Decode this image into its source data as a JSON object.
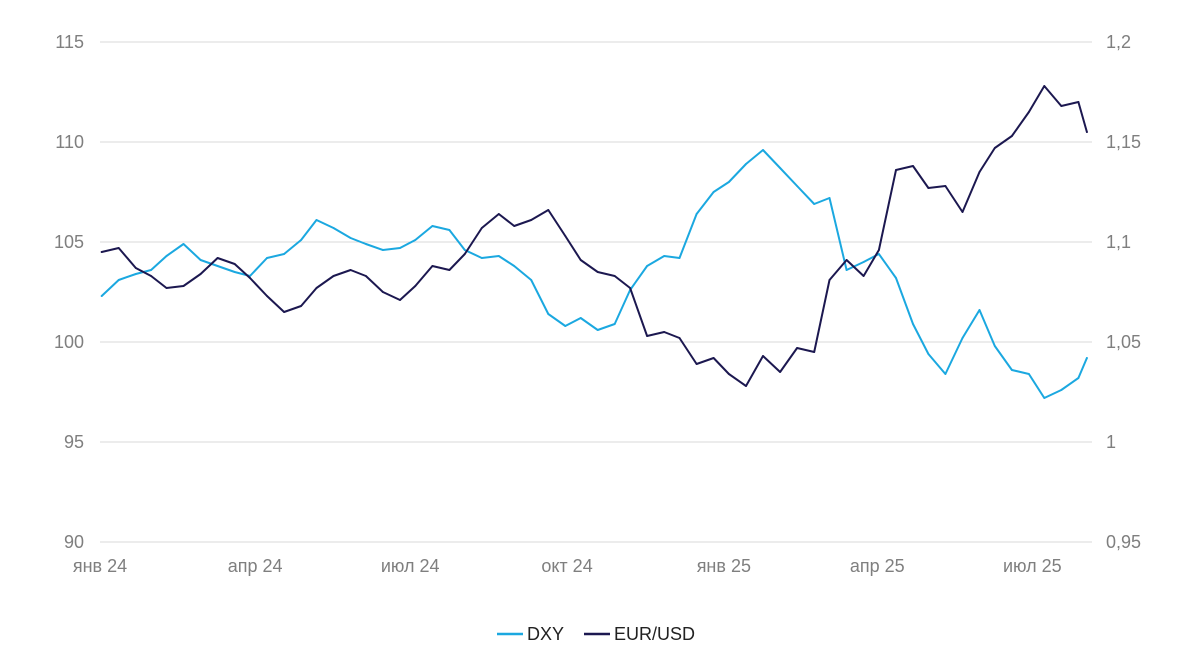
{
  "chart_data": {
    "type": "line",
    "title": "",
    "xlabel": "",
    "ylabel_left": "",
    "ylabel_right": "",
    "grid": true,
    "legend_position": "bottom",
    "colors": {
      "DXY": "#1ba8e0",
      "EUR/USD": "#1c1850",
      "grid": "#d9d9d9",
      "tick_text": "#7f7f7f"
    },
    "x_ticks": [
      {
        "date": "2024-01-01",
        "label": "янв 24"
      },
      {
        "date": "2024-04-01",
        "label": "апр 24"
      },
      {
        "date": "2024-07-01",
        "label": "июл 24"
      },
      {
        "date": "2024-10-01",
        "label": "окт 24"
      },
      {
        "date": "2025-01-01",
        "label": "янв 25"
      },
      {
        "date": "2025-04-01",
        "label": "апр 25"
      },
      {
        "date": "2025-07-01",
        "label": "июл 25"
      }
    ],
    "x_range": [
      "2024-01-01",
      "2025-08-05"
    ],
    "y_left": {
      "range": [
        90,
        115
      ],
      "ticks": [
        90,
        95,
        100,
        105,
        110,
        115
      ],
      "labels": [
        "90",
        "95",
        "100",
        "105",
        "110",
        "115"
      ]
    },
    "y_right": {
      "range": [
        0.95,
        1.2
      ],
      "ticks": [
        0.95,
        1.0,
        1.05,
        1.1,
        1.15,
        1.2
      ],
      "labels": [
        "0,95",
        "1",
        "1,05",
        "1,1",
        "1,15",
        "1,2"
      ]
    },
    "series": [
      {
        "name": "DXY",
        "axis": "left",
        "x": [
          "2024-01-02",
          "2024-01-12",
          "2024-01-22",
          "2024-01-31",
          "2024-02-09",
          "2024-02-19",
          "2024-02-29",
          "2024-03-10",
          "2024-03-20",
          "2024-03-29",
          "2024-04-08",
          "2024-04-18",
          "2024-04-28",
          "2024-05-07",
          "2024-05-17",
          "2024-05-27",
          "2024-06-05",
          "2024-06-15",
          "2024-06-25",
          "2024-07-04",
          "2024-07-14",
          "2024-07-24",
          "2024-08-02",
          "2024-08-12",
          "2024-08-22",
          "2024-08-31",
          "2024-09-10",
          "2024-09-20",
          "2024-09-30",
          "2024-10-09",
          "2024-10-19",
          "2024-10-29",
          "2024-11-07",
          "2024-11-17",
          "2024-11-27",
          "2024-12-06",
          "2024-12-16",
          "2024-12-26",
          "2025-01-04",
          "2025-01-14",
          "2025-01-24",
          "2025-02-03",
          "2025-02-13",
          "2025-02-23",
          "2025-03-04",
          "2025-03-14",
          "2025-03-24",
          "2025-04-02",
          "2025-04-12",
          "2025-04-22",
          "2025-05-01",
          "2025-05-11",
          "2025-05-21",
          "2025-05-31",
          "2025-06-09",
          "2025-06-19",
          "2025-06-29",
          "2025-07-08",
          "2025-07-18",
          "2025-07-28",
          "2025-08-02"
        ],
        "y": [
          102.3,
          103.1,
          103.4,
          103.6,
          104.3,
          104.9,
          104.1,
          103.8,
          103.5,
          103.3,
          104.2,
          104.4,
          105.1,
          106.1,
          105.7,
          105.2,
          104.9,
          104.6,
          104.7,
          105.1,
          105.8,
          105.6,
          104.6,
          104.2,
          104.3,
          103.8,
          103.1,
          101.4,
          100.8,
          101.2,
          100.6,
          100.9,
          102.6,
          103.8,
          104.3,
          104.2,
          106.4,
          107.5,
          108.0,
          108.9,
          109.6,
          108.7,
          107.8,
          106.9,
          107.2,
          103.6,
          104.0,
          104.4,
          103.2,
          100.9,
          99.4,
          98.4,
          100.2,
          101.6,
          99.8,
          98.6,
          98.4,
          97.2,
          97.6,
          98.2,
          99.2
        ],
        "values": [
          102.3,
          103.1,
          103.4,
          103.6,
          104.3,
          104.9,
          104.1,
          103.8,
          103.5,
          103.3,
          104.2,
          104.4,
          105.1,
          106.1,
          105.7,
          105.2,
          104.9,
          104.6,
          104.7,
          105.1,
          105.8,
          105.6,
          104.6,
          104.2,
          104.3,
          103.8,
          103.1,
          101.4,
          100.8,
          101.2,
          100.6,
          100.9,
          102.6,
          103.8,
          104.3,
          104.2,
          106.4,
          107.5,
          108.0,
          108.9,
          109.6,
          108.7,
          107.8,
          106.9,
          107.2,
          103.6,
          104.0,
          104.4,
          103.2,
          100.9,
          99.4,
          98.4,
          100.2,
          101.6,
          99.8,
          98.6,
          98.4,
          97.2,
          97.6,
          98.2,
          99.2
        ]
      },
      {
        "name": "EUR/USD",
        "axis": "right",
        "x": [
          "2024-01-02",
          "2024-01-12",
          "2024-01-22",
          "2024-01-31",
          "2024-02-09",
          "2024-02-19",
          "2024-02-29",
          "2024-03-10",
          "2024-03-20",
          "2024-03-29",
          "2024-04-08",
          "2024-04-18",
          "2024-04-28",
          "2024-05-07",
          "2024-05-17",
          "2024-05-27",
          "2024-06-05",
          "2024-06-15",
          "2024-06-25",
          "2024-07-04",
          "2024-07-14",
          "2024-07-24",
          "2024-08-02",
          "2024-08-12",
          "2024-08-22",
          "2024-08-31",
          "2024-09-10",
          "2024-09-20",
          "2024-09-30",
          "2024-10-09",
          "2024-10-19",
          "2024-10-29",
          "2024-11-07",
          "2024-11-17",
          "2024-11-27",
          "2024-12-06",
          "2024-12-16",
          "2024-12-26",
          "2025-01-04",
          "2025-01-14",
          "2025-01-24",
          "2025-02-03",
          "2025-02-13",
          "2025-02-23",
          "2025-03-04",
          "2025-03-14",
          "2025-03-24",
          "2025-04-02",
          "2025-04-12",
          "2025-04-22",
          "2025-05-01",
          "2025-05-11",
          "2025-05-21",
          "2025-05-31",
          "2025-06-09",
          "2025-06-19",
          "2025-06-29",
          "2025-07-08",
          "2025-07-18",
          "2025-07-28",
          "2025-08-02"
        ],
        "y": [
          1.095,
          1.097,
          1.087,
          1.083,
          1.077,
          1.078,
          1.084,
          1.092,
          1.089,
          1.082,
          1.073,
          1.065,
          1.068,
          1.077,
          1.083,
          1.086,
          1.083,
          1.075,
          1.071,
          1.078,
          1.088,
          1.086,
          1.094,
          1.107,
          1.114,
          1.108,
          1.111,
          1.116,
          1.103,
          1.091,
          1.085,
          1.083,
          1.077,
          1.053,
          1.055,
          1.052,
          1.039,
          1.042,
          1.034,
          1.028,
          1.043,
          1.035,
          1.047,
          1.045,
          1.081,
          1.091,
          1.083,
          1.096,
          1.136,
          1.138,
          1.127,
          1.128,
          1.115,
          1.135,
          1.147,
          1.153,
          1.165,
          1.178,
          1.168,
          1.17,
          1.155
        ],
        "values": [
          1.095,
          1.097,
          1.087,
          1.083,
          1.077,
          1.078,
          1.084,
          1.092,
          1.089,
          1.082,
          1.073,
          1.065,
          1.068,
          1.077,
          1.083,
          1.086,
          1.083,
          1.075,
          1.071,
          1.078,
          1.088,
          1.086,
          1.094,
          1.107,
          1.114,
          1.108,
          1.111,
          1.116,
          1.103,
          1.091,
          1.085,
          1.083,
          1.077,
          1.053,
          1.055,
          1.052,
          1.039,
          1.042,
          1.034,
          1.028,
          1.043,
          1.035,
          1.047,
          1.045,
          1.081,
          1.091,
          1.083,
          1.096,
          1.136,
          1.138,
          1.127,
          1.128,
          1.115,
          1.135,
          1.147,
          1.153,
          1.165,
          1.178,
          1.168,
          1.17,
          1.155
        ]
      }
    ]
  }
}
